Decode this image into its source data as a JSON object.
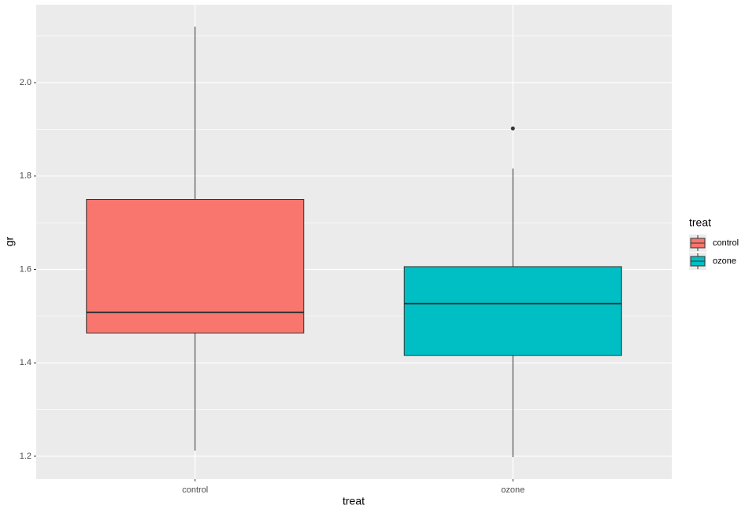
{
  "chart_data": {
    "type": "box",
    "x_label": "treat",
    "y_label": "gr",
    "categories": [
      "control",
      "ozone"
    ],
    "series": [
      {
        "name": "control",
        "color": "#F8766D",
        "min": 1.212,
        "q1": 1.464,
        "median": 1.508,
        "q3": 1.75,
        "max": 2.12,
        "outliers": []
      },
      {
        "name": "ozone",
        "color": "#00BFC4",
        "min": 1.198,
        "q1": 1.416,
        "median": 1.527,
        "q3": 1.606,
        "max": 1.816,
        "outliers": [
          1.902
        ]
      }
    ],
    "ylim": [
      1.151,
      2.167
    ],
    "yticks": [
      {
        "value": 1.2,
        "label": "1.2"
      },
      {
        "value": 1.4,
        "label": "1.4"
      },
      {
        "value": 1.6,
        "label": "1.6"
      },
      {
        "value": 1.8,
        "label": "1.8"
      },
      {
        "value": 2.0,
        "label": "2.0"
      }
    ],
    "grid": true,
    "minor_grid": true,
    "legend_title": "treat",
    "legend_position": "right"
  }
}
